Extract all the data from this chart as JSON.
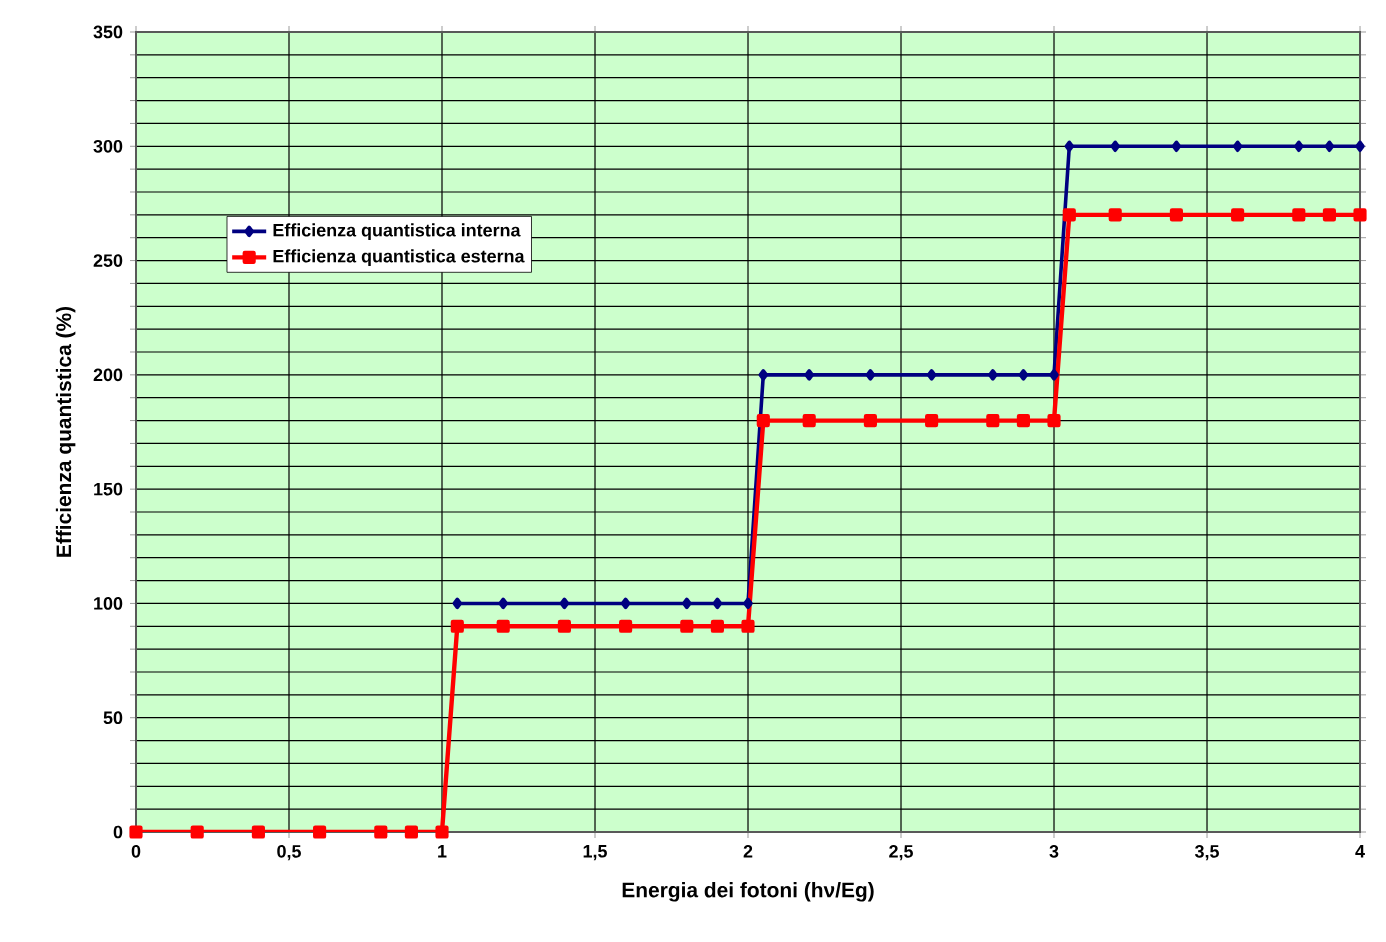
{
  "chart_data": {
    "type": "line",
    "xlabel": "Energia dei fotoni (hν/Eg)",
    "ylabel": "Efficienza quantistica (%)",
    "x": [
      0,
      0.2,
      0.4,
      0.6,
      0.8,
      0.9,
      1,
      1.05,
      1.2,
      1.4,
      1.6,
      1.8,
      1.9,
      2,
      2.05,
      2.2,
      2.4,
      2.6,
      2.8,
      2.9,
      3,
      3.05,
      3.2,
      3.4,
      3.6,
      3.8,
      3.9,
      4
    ],
    "series": [
      {
        "name": "Efficienza quantistica interna",
        "color": "#000080",
        "marker": "diamond",
        "values": [
          null,
          null,
          null,
          null,
          null,
          null,
          null,
          100,
          100,
          100,
          100,
          100,
          100,
          100,
          200,
          200,
          200,
          200,
          200,
          200,
          200,
          300,
          300,
          300,
          300,
          300,
          300,
          300
        ]
      },
      {
        "name": "Efficienza quantistica esterna",
        "color": "#ff0000",
        "marker": "square",
        "values": [
          0,
          0,
          0,
          0,
          0,
          0,
          0,
          90,
          90,
          90,
          90,
          90,
          90,
          90,
          180,
          180,
          180,
          180,
          180,
          180,
          180,
          270,
          270,
          270,
          270,
          270,
          270,
          270
        ]
      }
    ],
    "xlim": [
      0,
      4
    ],
    "ylim": [
      0,
      350
    ],
    "xticks": [
      0,
      {
        "value": 0.5,
        "label": "0,5"
      },
      1,
      {
        "value": 1.5,
        "label": "1,5"
      },
      2,
      {
        "value": 2.5,
        "label": "2,5"
      },
      3,
      {
        "value": 3.5,
        "label": "3,5"
      },
      4
    ],
    "yticks": [
      0,
      {
        "value": 10,
        "label": null
      },
      {
        "value": 20,
        "label": null
      },
      {
        "value": 30,
        "label": null
      },
      {
        "value": 40,
        "label": null
      },
      50,
      {
        "value": 60,
        "label": null
      },
      {
        "value": 70,
        "label": null
      },
      {
        "value": 80,
        "label": null
      },
      {
        "value": 90,
        "label": null
      },
      100,
      {
        "value": 110,
        "label": null
      },
      {
        "value": 120,
        "label": null
      },
      {
        "value": 130,
        "label": null
      },
      {
        "value": 140,
        "label": null
      },
      150,
      {
        "value": 160,
        "label": null
      },
      {
        "value": 170,
        "label": null
      },
      {
        "value": 180,
        "label": null
      },
      {
        "value": 190,
        "label": null
      },
      200,
      {
        "value": 210,
        "label": null
      },
      {
        "value": 220,
        "label": null
      },
      {
        "value": 230,
        "label": null
      },
      {
        "value": 240,
        "label": null
      },
      250,
      {
        "value": 260,
        "label": null
      },
      {
        "value": 270,
        "label": null
      },
      {
        "value": 280,
        "label": null
      },
      {
        "value": 290,
        "label": null
      },
      300,
      {
        "value": 310,
        "label": null
      },
      {
        "value": 320,
        "label": null
      },
      {
        "value": 330,
        "label": null
      },
      {
        "value": 340,
        "label": null
      },
      350
    ],
    "grid": true,
    "legend": "top left",
    "line_style": "solid"
  }
}
